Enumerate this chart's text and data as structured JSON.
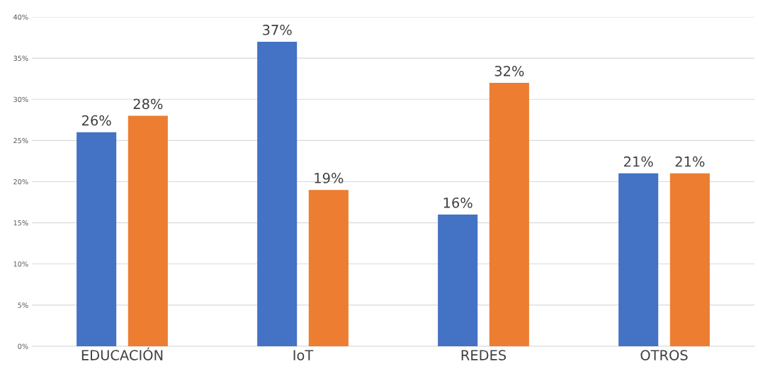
{
  "chart_data": {
    "type": "bar",
    "categories": [
      "EDUCACIÓN",
      "IoT",
      "REDES",
      "OTROS"
    ],
    "series": [
      {
        "color": "#4472c4",
        "values": [
          26,
          37,
          16,
          21
        ],
        "value_labels": [
          "26%",
          "37%",
          "16%",
          "21%"
        ]
      },
      {
        "color": "#ed7d31",
        "values": [
          28,
          19,
          32,
          21
        ],
        "value_labels": [
          "28%",
          "19%",
          "32%",
          "21%"
        ]
      }
    ],
    "ylim": [
      0,
      40
    ],
    "yticks": [
      {
        "value": 0,
        "label": "0%"
      },
      {
        "value": 5,
        "label": "5%"
      },
      {
        "value": 10,
        "label": "10%"
      },
      {
        "value": 15,
        "label": "15%"
      },
      {
        "value": 20,
        "label": "20%"
      },
      {
        "value": 25,
        "label": "25%"
      },
      {
        "value": 30,
        "label": "30%"
      },
      {
        "value": 35,
        "label": "35%"
      },
      {
        "value": 40,
        "label": "40%"
      }
    ],
    "grid": "y"
  }
}
